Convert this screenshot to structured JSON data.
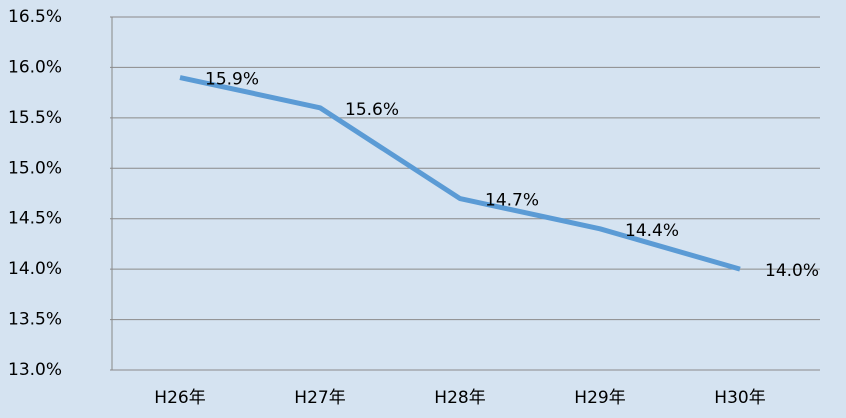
{
  "chart_data": {
    "type": "line",
    "categories": [
      "H26年",
      "H27年",
      "H28年",
      "H29年",
      "H30年"
    ],
    "series": [
      {
        "color": "#5b9bd5",
        "values": [
          15.9,
          15.6,
          14.7,
          14.4,
          14.0
        ],
        "value_labels": [
          "15.9%",
          "15.6%",
          "14.7%",
          "14.4%",
          "14.0%"
        ]
      }
    ],
    "ylim": [
      13.0,
      16.5
    ],
    "yticks": [
      {
        "value": 13.0,
        "label": "13.0%"
      },
      {
        "value": 13.5,
        "label": "13.5%"
      },
      {
        "value": 14.0,
        "label": "14.0%"
      },
      {
        "value": 14.5,
        "label": "14.5%"
      },
      {
        "value": 15.0,
        "label": "15.0%"
      },
      {
        "value": 15.5,
        "label": "15.5%"
      },
      {
        "value": 16.0,
        "label": "16.0%"
      },
      {
        "value": 16.5,
        "label": "16.5%"
      }
    ],
    "grid": true
  }
}
